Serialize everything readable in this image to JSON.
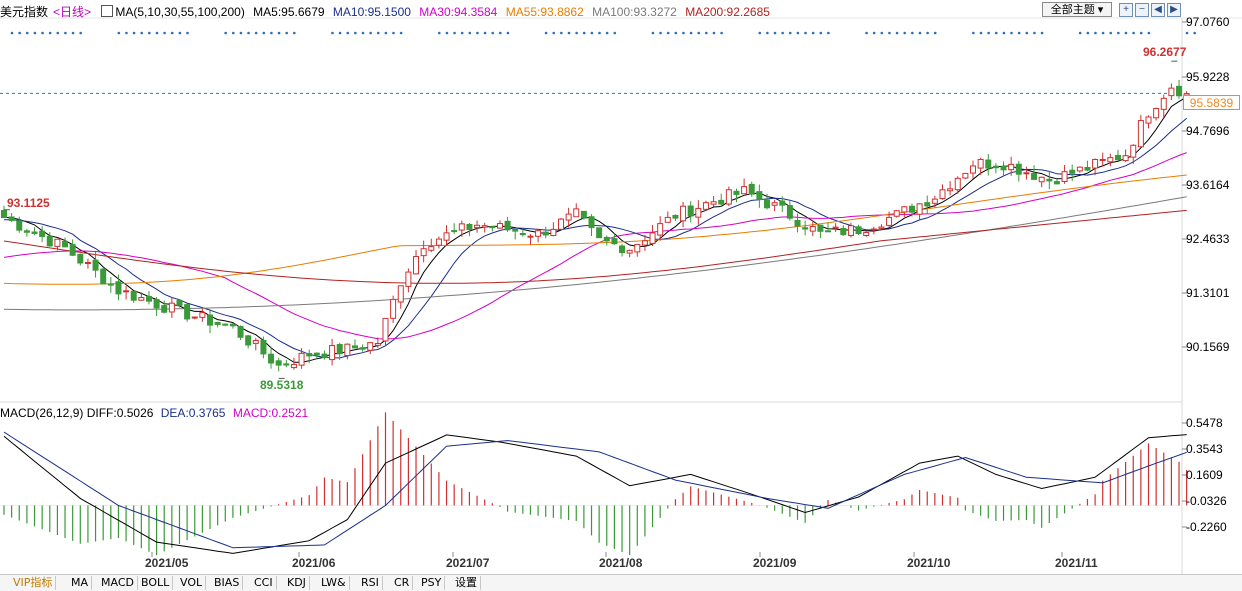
{
  "header": {
    "title": "美元指数",
    "period": "<日线>",
    "ma_label": "MA(5,10,30,55,100,200)",
    "ma5": "MA5:95.6679",
    "ma10": "MA10:95.1500",
    "ma30": "MA30:94.3584",
    "ma55": "MA55:93.8862",
    "ma100": "MA100:93.3272",
    "ma200": "MA200:92.2685",
    "theme_select": "全部主题",
    "colors": {
      "ma5": "#000000",
      "ma10": "#1a2f8c",
      "ma30": "#d400c8",
      "ma55": "#e87d00",
      "ma100": "#7a7a7a",
      "ma200": "#b22222"
    }
  },
  "price_axis": {
    "ticks": [
      "97.0760",
      "95.9228",
      "94.7696",
      "93.6164",
      "92.4633",
      "91.3101",
      "90.1569"
    ],
    "current_price": "95.5839"
  },
  "annotations": {
    "high": "96.2677",
    "left_high": "93.1125",
    "low": "89.5318"
  },
  "macd": {
    "label": "MACD(26,12,9)",
    "diff": "DIFF:0.5026",
    "dea": "DEA:0.3765",
    "macd": "MACD:0.2521",
    "ticks": [
      "0.5478",
      "0.3543",
      "0.1609",
      "-0.0326",
      "-0.2260"
    ]
  },
  "months": [
    "2021/05",
    "2021/06",
    "2021/07",
    "2021/08",
    "2021/09",
    "2021/10",
    "2021/11"
  ],
  "tabs": [
    "VIP指标",
    "MA",
    "MACD",
    "BOLL",
    "VOL",
    "BIAS",
    "CCI",
    "KDJ",
    "LW&",
    "RSI",
    "CR",
    "PSY",
    "设置"
  ],
  "chart_data": {
    "type": "candlestick",
    "title": "美元指数 日线",
    "ylim": [
      89.2,
      97.1
    ],
    "x_range": [
      "2021-04-12",
      "2021-11-18"
    ],
    "highlights": {
      "high": 96.2677,
      "high_index": 153,
      "left_high": 93.1125,
      "low": 89.5318,
      "low_index": 36
    },
    "close_anchors": [
      [
        0,
        92.95
      ],
      [
        8,
        92.3
      ],
      [
        15,
        91.4
      ],
      [
        23,
        90.95
      ],
      [
        30,
        90.6
      ],
      [
        36,
        89.8
      ],
      [
        40,
        90.05
      ],
      [
        45,
        90.15
      ],
      [
        49,
        90.3
      ],
      [
        52,
        91.6
      ],
      [
        55,
        92.4
      ],
      [
        62,
        92.8
      ],
      [
        70,
        92.6
      ],
      [
        75,
        93.0
      ],
      [
        78,
        92.45
      ],
      [
        82,
        92.3
      ],
      [
        88,
        93.0
      ],
      [
        93,
        93.3
      ],
      [
        97,
        93.5
      ],
      [
        102,
        93.1
      ],
      [
        107,
        92.6
      ],
      [
        112,
        92.7
      ],
      [
        117,
        93.0
      ],
      [
        122,
        93.4
      ],
      [
        127,
        94.1
      ],
      [
        131,
        94.1
      ],
      [
        137,
        93.75
      ],
      [
        142,
        94.0
      ],
      [
        147,
        94.3
      ],
      [
        150,
        95.2
      ],
      [
        153,
        95.75
      ],
      [
        155,
        95.58
      ]
    ],
    "ma_last": {
      "MA5": 95.6679,
      "MA10": 95.15,
      "MA30": 94.3584,
      "MA55": 93.8862,
      "MA100": 93.3272,
      "MA200": 92.2685
    },
    "macd_ylim": [
      -0.33,
      0.62
    ],
    "macd_last": {
      "DIFF": 0.5026,
      "DEA": 0.3765,
      "MACD": 0.2521
    },
    "macd_diff_anchors": [
      [
        0,
        0.49
      ],
      [
        10,
        0.05
      ],
      [
        20,
        -0.26
      ],
      [
        30,
        -0.34
      ],
      [
        40,
        -0.25
      ],
      [
        45,
        -0.1
      ],
      [
        50,
        0.3
      ],
      [
        58,
        0.5
      ],
      [
        65,
        0.45
      ],
      [
        75,
        0.35
      ],
      [
        82,
        0.14
      ],
      [
        90,
        0.22
      ],
      [
        98,
        0.08
      ],
      [
        105,
        -0.05
      ],
      [
        112,
        0.06
      ],
      [
        120,
        0.3
      ],
      [
        125,
        0.35
      ],
      [
        130,
        0.22
      ],
      [
        136,
        0.12
      ],
      [
        143,
        0.2
      ],
      [
        150,
        0.48
      ],
      [
        155,
        0.5026
      ]
    ],
    "macd_dea_anchors": [
      [
        0,
        0.52
      ],
      [
        15,
        0.0
      ],
      [
        30,
        -0.3
      ],
      [
        42,
        -0.28
      ],
      [
        50,
        0.0
      ],
      [
        58,
        0.42
      ],
      [
        66,
        0.46
      ],
      [
        78,
        0.38
      ],
      [
        88,
        0.18
      ],
      [
        100,
        0.05
      ],
      [
        108,
        -0.02
      ],
      [
        118,
        0.22
      ],
      [
        126,
        0.34
      ],
      [
        134,
        0.2
      ],
      [
        144,
        0.16
      ],
      [
        150,
        0.28
      ],
      [
        155,
        0.3765
      ]
    ]
  }
}
